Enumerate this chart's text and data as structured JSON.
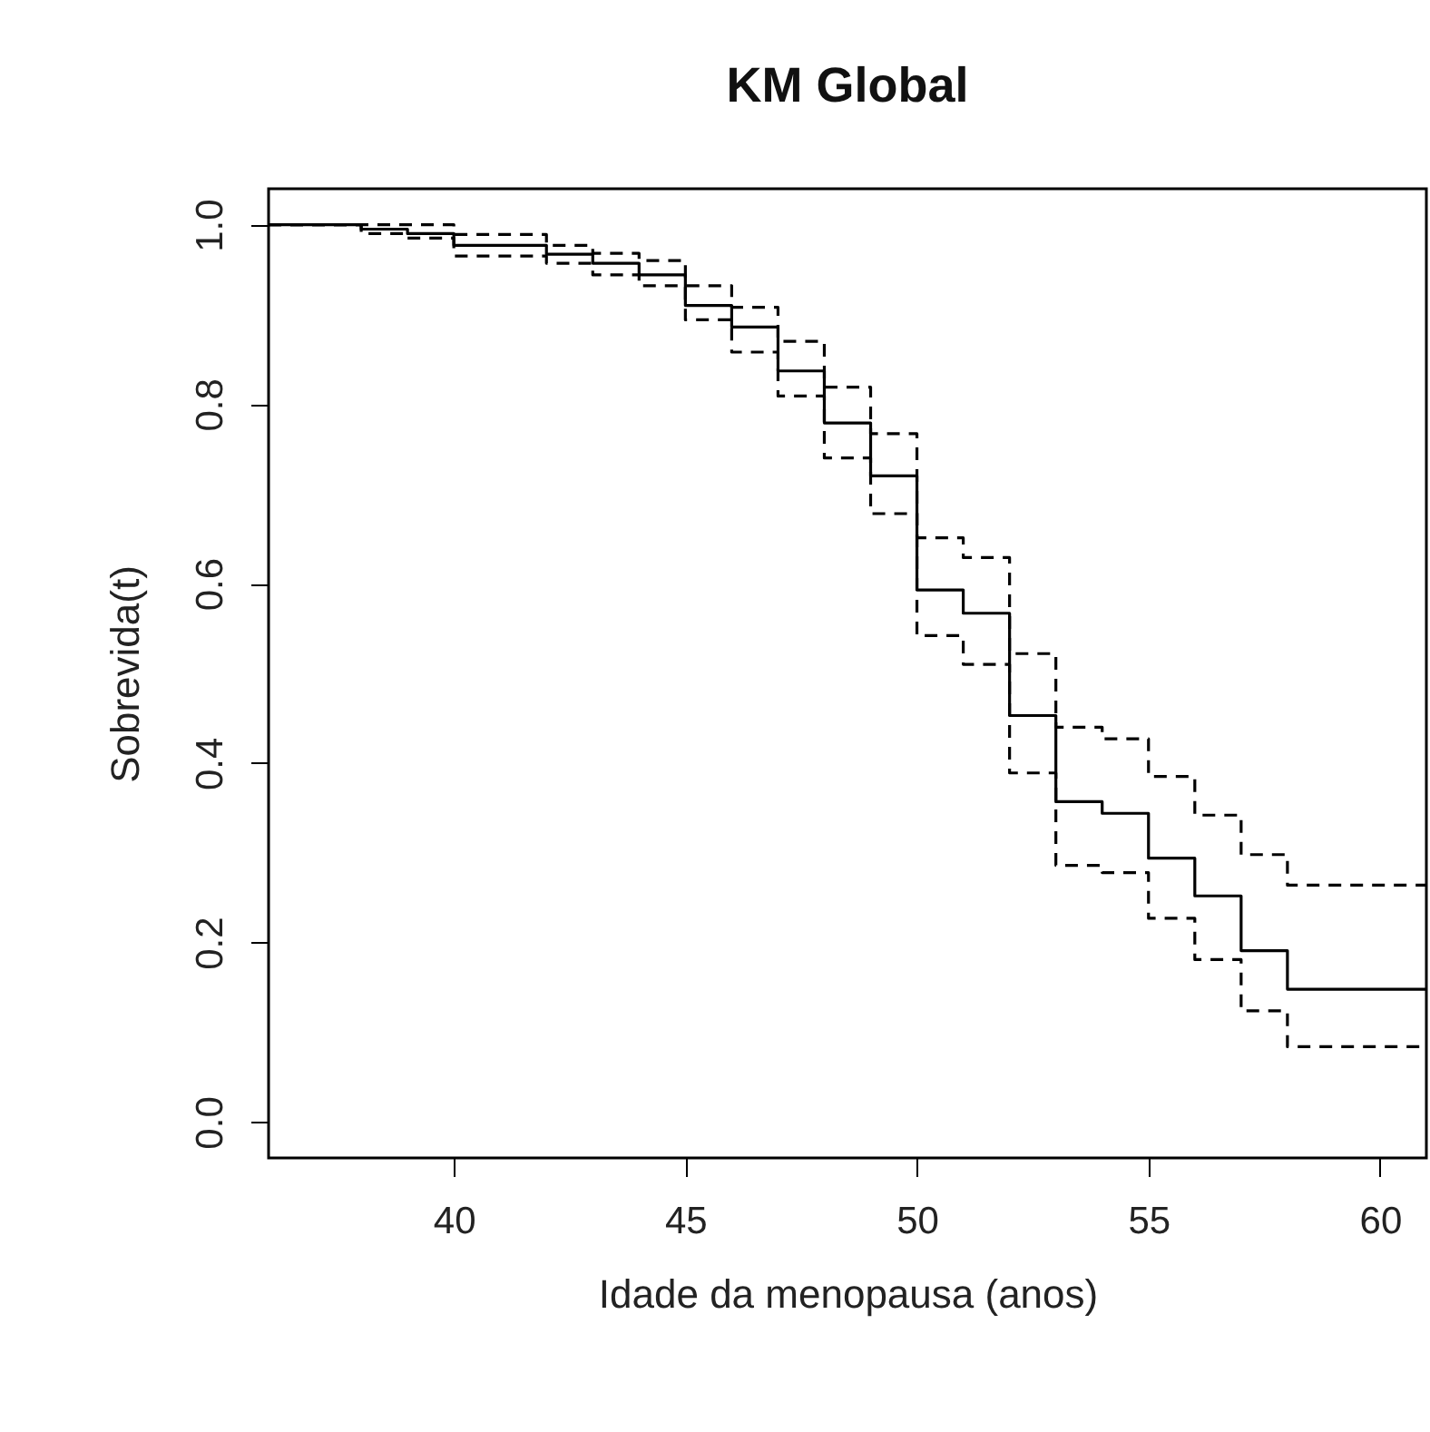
{
  "chart_data": {
    "type": "step",
    "title": "KM Global",
    "xlabel": "Idade da menopausa (anos)",
    "ylabel": "Sobrevida(t)",
    "xlim": [
      36,
      61
    ],
    "xticks": [
      40,
      45,
      50,
      55,
      60
    ],
    "ylim": [
      -0.04,
      1.04
    ],
    "yticks": [
      {
        "value": 0,
        "label": "0.0"
      },
      0.2,
      0.4,
      0.6,
      0.8,
      {
        "value": 1,
        "label": "1.0"
      }
    ],
    "grid": false,
    "legend": false,
    "series": [
      {
        "color": "#000000",
        "line_style": "solid",
        "x": [
          36,
          38,
          39,
          40,
          42,
          43,
          44,
          45,
          46,
          47,
          48,
          49,
          50,
          51,
          52,
          53,
          54,
          55,
          56,
          57,
          58,
          61
        ],
        "values": [
          1.0,
          0.995,
          0.99,
          0.977,
          0.967,
          0.957,
          0.944,
          0.91,
          0.886,
          0.837,
          0.779,
          0.72,
          0.593,
          0.567,
          0.453,
          0.357,
          0.344,
          0.294,
          0.252,
          0.191,
          0.148,
          0.148
        ]
      },
      {
        "color": "#000000",
        "line_style": "dashed",
        "x": [
          36,
          40,
          42,
          43,
          44,
          45,
          46,
          47,
          48,
          49,
          50,
          51,
          52,
          53,
          54,
          55,
          56,
          57,
          58,
          61
        ],
        "values": [
          1.0,
          0.989,
          0.977,
          0.968,
          0.96,
          0.932,
          0.908,
          0.87,
          0.819,
          0.767,
          0.651,
          0.629,
          0.522,
          0.44,
          0.427,
          0.385,
          0.342,
          0.298,
          0.264,
          0.264
        ]
      },
      {
        "color": "#000000",
        "line_style": "dashed",
        "x": [
          36,
          38,
          39,
          40,
          42,
          43,
          44,
          45,
          46,
          47,
          48,
          49,
          50,
          51,
          52,
          53,
          54,
          55,
          56,
          57,
          58,
          61
        ],
        "values": [
          1.0,
          0.99,
          0.985,
          0.965,
          0.957,
          0.944,
          0.932,
          0.894,
          0.858,
          0.809,
          0.74,
          0.678,
          0.542,
          0.51,
          0.389,
          0.286,
          0.278,
          0.227,
          0.181,
          0.124,
          0.084,
          0.084
        ]
      }
    ]
  }
}
